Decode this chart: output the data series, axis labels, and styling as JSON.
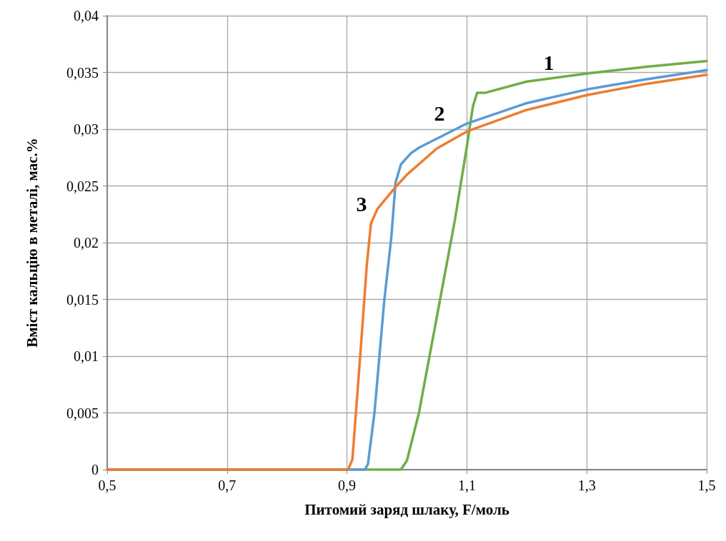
{
  "chart_data": {
    "type": "line",
    "xlabel": "Питомий заряд шлаку, F/моль",
    "ylabel": "Вміст кальцію в металі, мас.%",
    "xlim": [
      0.5,
      1.5
    ],
    "xticks": [
      {
        "value": 0.5,
        "label": "0,5"
      },
      {
        "value": 0.7,
        "label": "0,7"
      },
      {
        "value": 0.9,
        "label": "0,9"
      },
      {
        "value": 1.1,
        "label": "1,1"
      },
      {
        "value": 1.3,
        "label": "1,3"
      },
      {
        "value": 1.5,
        "label": "1,5"
      }
    ],
    "ylim": [
      0,
      0.04
    ],
    "yticks": [
      0,
      {
        "value": 0.005,
        "label": "0,005"
      },
      {
        "value": 0.01,
        "label": "0,01"
      },
      {
        "value": 0.015,
        "label": "0,015"
      },
      {
        "value": 0.02,
        "label": "0,02"
      },
      {
        "value": 0.025,
        "label": "0,025"
      },
      {
        "value": 0.03,
        "label": "0,03"
      },
      {
        "value": 0.035,
        "label": "0,035"
      },
      {
        "value": 0.04,
        "label": "0,04"
      }
    ],
    "grid": true,
    "marker": "none",
    "line_style": "solid",
    "series": [
      {
        "color": "#70ad47",
        "x": [
          0.5,
          0.9,
          0.99,
          1.0,
          1.02,
          1.05,
          1.08,
          1.1,
          1.11,
          1.117,
          1.13,
          1.2,
          1.3,
          1.4,
          1.5
        ],
        "values": [
          0,
          0,
          0,
          0.0008,
          0.005,
          0.0135,
          0.022,
          0.0285,
          0.032,
          0.0332,
          0.0332,
          0.0342,
          0.0349,
          0.0355,
          0.036
        ]
      },
      {
        "color": "#5b9bd5",
        "x": [
          0.5,
          0.93,
          0.935,
          0.946,
          0.962,
          0.974,
          0.981,
          0.99,
          1.007,
          1.021,
          1.1,
          1.2,
          1.3,
          1.4,
          1.5
        ],
        "values": [
          0,
          0,
          0.0005,
          0.0051,
          0.0148,
          0.0205,
          0.0253,
          0.0269,
          0.0279,
          0.0284,
          0.0305,
          0.0323,
          0.0335,
          0.0344,
          0.0352
        ]
      },
      {
        "color": "#ed7d31",
        "x": [
          0.5,
          0.902,
          0.909,
          0.923,
          0.933,
          0.94,
          0.951,
          0.981,
          1.0,
          1.05,
          1.1,
          1.2,
          1.3,
          1.4,
          1.5
        ],
        "values": [
          0,
          0,
          0.0009,
          0.0107,
          0.018,
          0.0217,
          0.023,
          0.0249,
          0.026,
          0.0283,
          0.0298,
          0.0317,
          0.033,
          0.034,
          0.0348
        ]
      }
    ],
    "annotations": [
      "1",
      "2",
      "3"
    ]
  }
}
